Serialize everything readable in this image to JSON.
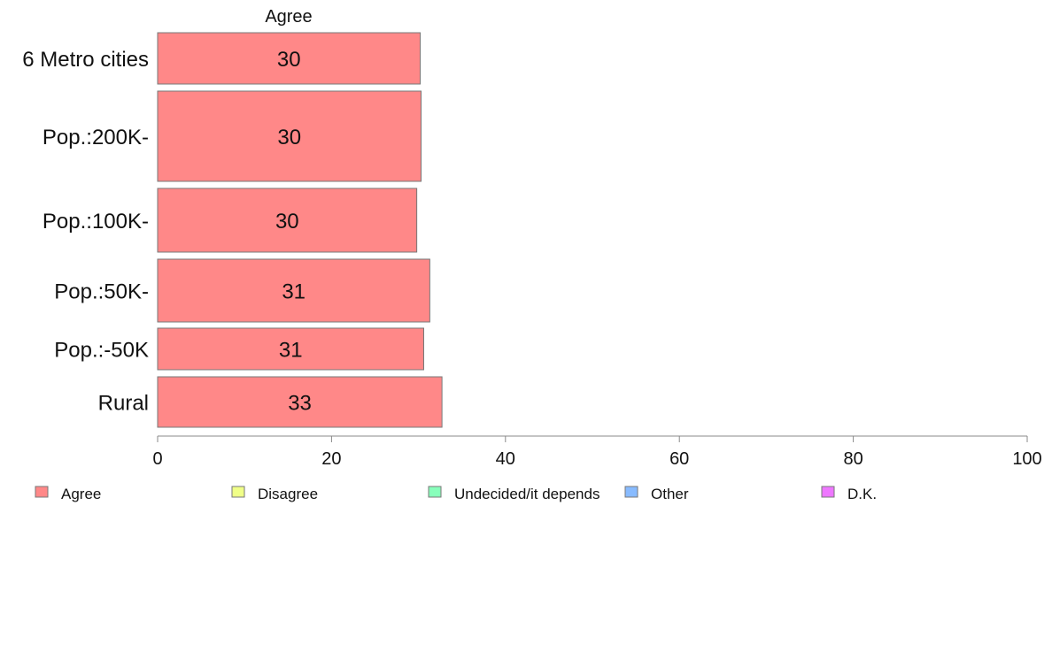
{
  "chart_data": {
    "type": "bar",
    "orientation": "horizontal",
    "title": "Agree",
    "xlabel": "",
    "ylabel": "",
    "xlim": [
      0,
      100
    ],
    "xticks": [
      "0",
      "20",
      "40",
      "60",
      "80",
      "100"
    ],
    "grid": false,
    "categories": [
      "6 Metro cities",
      "Pop.:200K-",
      "Pop.:100K-",
      "Pop.:50K-",
      "Pop.:-50K",
      "Rural"
    ],
    "series": [
      {
        "name": "Agree",
        "color": "#ff8888",
        "values": [
          30.2,
          30.3,
          29.8,
          31.3,
          30.6,
          32.7
        ],
        "labels": [
          "30",
          "30",
          "30",
          "31",
          "31",
          "33"
        ]
      }
    ],
    "legend_position": "bottom",
    "legend": [
      {
        "label": "Agree",
        "color": "#ff8888"
      },
      {
        "label": "Disagree",
        "color": "#f0ff88"
      },
      {
        "label": "Undecided/it depends",
        "color": "#88ffbb"
      },
      {
        "label": "Other",
        "color": "#88bbff"
      },
      {
        "label": "D.K.",
        "color": "#ee77ff"
      }
    ]
  }
}
